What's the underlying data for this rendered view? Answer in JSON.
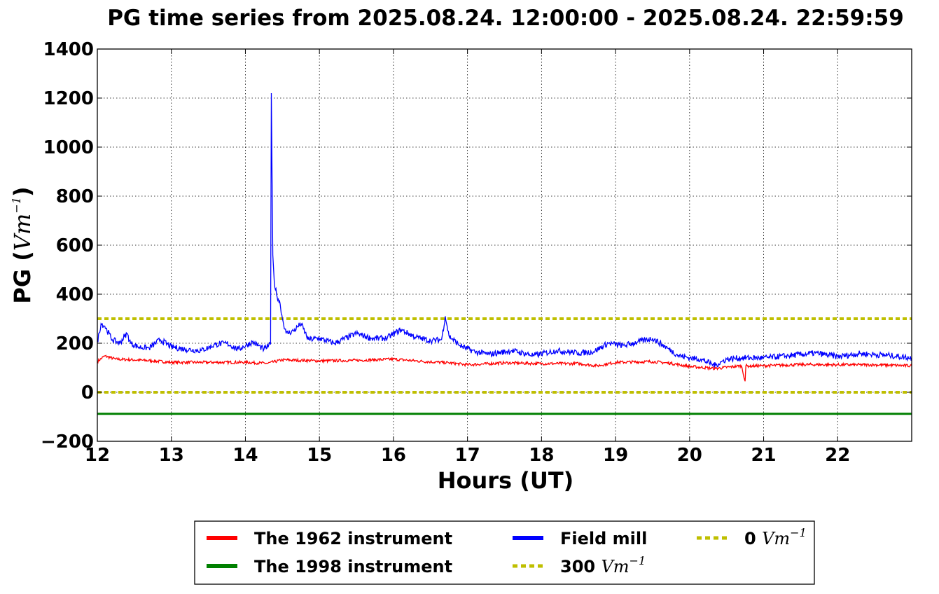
{
  "chart_data": {
    "type": "line",
    "title": "PG time series from 2025.08.24. 12:00:00 - 2025.08.24. 22:59:59",
    "xlabel": "Hours (UT)",
    "ylabel_prefix": "PG (",
    "ylabel_unit": "Vm",
    "ylabel_exp": "−1",
    "ylabel_suffix": ")",
    "xlim": [
      12,
      23
    ],
    "ylim": [
      -200,
      1400
    ],
    "x_ticks": [
      12,
      13,
      14,
      15,
      16,
      17,
      18,
      19,
      20,
      21,
      22
    ],
    "y_ticks": [
      -200,
      0,
      200,
      400,
      600,
      800,
      1000,
      1200,
      1400
    ],
    "y_tick_labels": [
      "−200",
      "0",
      "200",
      "400",
      "600",
      "800",
      "1000",
      "1200",
      "1400"
    ],
    "grid": true,
    "legend_position": "below",
    "series": [
      {
        "name": "The 1962 instrument",
        "color": "#ff0000",
        "x": [
          12.0,
          12.1,
          12.25,
          12.5,
          12.75,
          13.0,
          13.5,
          14.0,
          14.3,
          14.5,
          14.75,
          15.0,
          15.5,
          16.0,
          16.3,
          16.5,
          16.75,
          17.0,
          17.5,
          18.0,
          18.5,
          18.75,
          19.0,
          19.5,
          19.75,
          20.0,
          20.35,
          20.7,
          20.75,
          20.76,
          20.8,
          21.0,
          21.5,
          22.0,
          22.5,
          23.0
        ],
        "y": [
          125,
          148,
          135,
          132,
          128,
          122,
          122,
          122,
          118,
          132,
          130,
          128,
          130,
          135,
          128,
          124,
          120,
          112,
          120,
          117,
          117,
          108,
          122,
          125,
          118,
          105,
          97,
          108,
          45,
          108,
          107,
          108,
          113,
          112,
          112,
          108
        ]
      },
      {
        "name": "The 1998 instrument",
        "color": "#008000",
        "x": [
          12.0,
          23.0
        ],
        "y": [
          -88,
          -88
        ]
      },
      {
        "name": "Field mill",
        "color": "#0000ff",
        "x": [
          12.0,
          12.05,
          12.1,
          12.2,
          12.3,
          12.4,
          12.45,
          12.55,
          12.7,
          12.85,
          13.0,
          13.2,
          13.4,
          13.6,
          13.75,
          13.9,
          14.1,
          14.25,
          14.34,
          14.35,
          14.37,
          14.39,
          14.42,
          14.47,
          14.5,
          14.55,
          14.65,
          14.75,
          14.85,
          15.0,
          15.2,
          15.5,
          15.7,
          15.9,
          16.1,
          16.3,
          16.5,
          16.65,
          16.7,
          16.75,
          16.9,
          17.1,
          17.3,
          17.6,
          17.9,
          18.2,
          18.5,
          18.7,
          18.9,
          19.1,
          19.3,
          19.5,
          19.7,
          19.85,
          20.0,
          20.15,
          20.3,
          20.35,
          20.5,
          20.7,
          21.0,
          21.3,
          21.7,
          22.0,
          22.3,
          22.7,
          23.0
        ],
        "y": [
          205,
          280,
          270,
          215,
          200,
          240,
          200,
          185,
          180,
          215,
          185,
          175,
          170,
          195,
          200,
          175,
          205,
          175,
          195,
          1220,
          560,
          450,
          400,
          360,
          300,
          240,
          250,
          280,
          215,
          220,
          200,
          240,
          220,
          220,
          255,
          225,
          210,
          215,
          310,
          230,
          190,
          165,
          155,
          170,
          150,
          170,
          160,
          165,
          200,
          190,
          205,
          220,
          180,
          150,
          140,
          135,
          115,
          110,
          135,
          140,
          140,
          148,
          160,
          145,
          158,
          150,
          140
        ]
      },
      {
        "name": "300 Vm−1",
        "legend_prefix": "300 ",
        "legend_unit": "Vm",
        "legend_exp": "−1",
        "color": "#bfbf00",
        "dashed": true,
        "x": [
          12.0,
          23.0
        ],
        "y": [
          300,
          300
        ]
      },
      {
        "name": "0 Vm−1",
        "legend_prefix": "0 ",
        "legend_unit": "Vm",
        "legend_exp": "−1",
        "color": "#bfbf00",
        "dashed": true,
        "x": [
          12.0,
          23.0
        ],
        "y": [
          0,
          0
        ]
      }
    ],
    "legend": {
      "entries": [
        {
          "label": "The 1962 instrument",
          "color": "#ff0000",
          "dashed": false
        },
        {
          "label": "Field mill",
          "color": "#0000ff",
          "dashed": false
        },
        {
          "prefix": "0 ",
          "unit": "Vm",
          "exp": "−1",
          "color": "#bfbf00",
          "dashed": true
        },
        {
          "label": "The 1998 instrument",
          "color": "#008000",
          "dashed": false
        },
        {
          "prefix": "300 ",
          "unit": "Vm",
          "exp": "−1",
          "color": "#bfbf00",
          "dashed": true
        }
      ]
    }
  }
}
